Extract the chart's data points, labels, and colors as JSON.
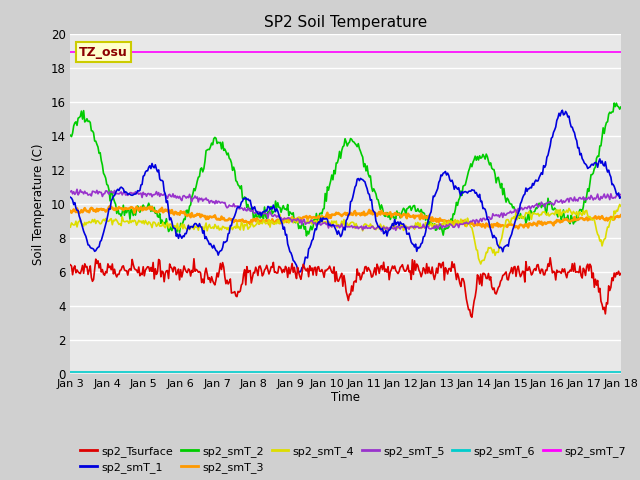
{
  "title": "SP2 Soil Temperature",
  "xlabel": "Time",
  "ylabel": "Soil Temperature (C)",
  "ylim": [
    0,
    20
  ],
  "yticks": [
    0,
    2,
    4,
    6,
    8,
    10,
    12,
    14,
    16,
    18,
    20
  ],
  "xtick_labels": [
    "Jan 3",
    "Jan 4",
    "Jan 5",
    "Jan 6",
    "Jan 7",
    "Jan 8",
    "Jan 9",
    "Jan 10",
    "Jan 11",
    "Jan 12",
    "Jan 13",
    "Jan 14",
    "Jan 15",
    "Jan 16",
    "Jan 17",
    "Jan 18"
  ],
  "bg_color": "#e8e8e8",
  "grid_color": "#ffffff",
  "annotation_text": "TZ_osu",
  "annotation_bg": "#ffffcc",
  "annotation_fg": "#8b0000",
  "annotation_border": "#cccc00",
  "series_colors": {
    "sp2_Tsurface": "#dd0000",
    "sp2_smT_1": "#0000dd",
    "sp2_smT_2": "#00cc00",
    "sp2_smT_3": "#ff9900",
    "sp2_smT_4": "#dddd00",
    "sp2_smT_5": "#9933cc",
    "sp2_smT_6": "#00cccc",
    "sp2_smT_7": "#ff00ff"
  },
  "fig_bg": "#d0d0d0"
}
